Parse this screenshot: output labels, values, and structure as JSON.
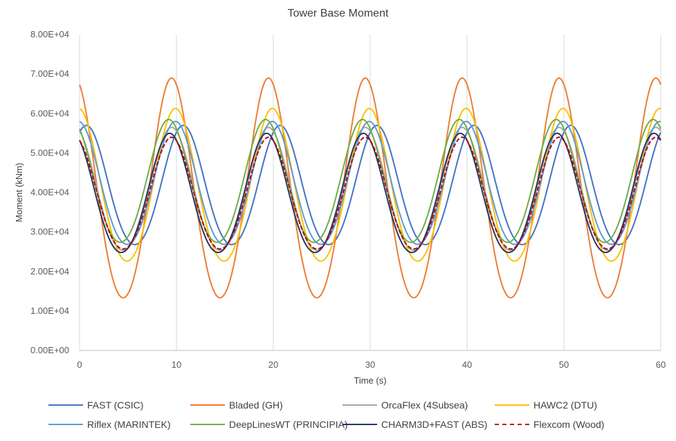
{
  "chart_data": {
    "type": "line",
    "title": "Tower Base Moment",
    "xlabel": "Time (s)",
    "ylabel": "Moment (kNm)",
    "xlim": [
      0,
      60
    ],
    "ylim": [
      0,
      80000
    ],
    "x_ticks": [
      "0",
      "10",
      "20",
      "30",
      "40",
      "50",
      "60"
    ],
    "y_ticks": [
      "0.00E+00",
      "1.00E+04",
      "2.00E+04",
      "3.00E+04",
      "4.00E+04",
      "5.00E+04",
      "6.00E+04",
      "7.00E+04",
      "8.00E+04"
    ],
    "grid": "vertical",
    "legend_position": "bottom",
    "period_s": 10,
    "series": [
      {
        "name": "FAST (CSIC)",
        "color": "#4472C4",
        "dash": "solid",
        "mean": 41000,
        "amplitude": 16000,
        "peak_time": 0.7
      },
      {
        "name": "Bladed (GH)",
        "color": "#ED7D31",
        "dash": "solid",
        "mean": 39500,
        "amplitude": 29500,
        "peak_time": 9.5
      },
      {
        "name": "OrcaFlex (4Subsea)",
        "color": "#A5A5A5",
        "dash": "solid",
        "mean": 40000,
        "amplitude": 16500,
        "peak_time": 9.5
      },
      {
        "name": "HAWC2 (DTU)",
        "color": "#FFC000",
        "dash": "solid",
        "mean": 40800,
        "amplitude": 20500,
        "peak_time": 9.9
      },
      {
        "name": "Riflex (MARINTEK)",
        "color": "#5B9BD5",
        "dash": "solid",
        "mean": 41500,
        "amplitude": 16500,
        "peak_time": 9.9
      },
      {
        "name": "DeepLinesWT (PRINCIPIA)",
        "color": "#70AD47",
        "dash": "solid",
        "mean": 42000,
        "amplitude": 16500,
        "peak_time": 9.2
      },
      {
        "name": "CHARM3D+FAST (ABS)",
        "color": "#1F3864",
        "dash": "solid",
        "mean": 39000,
        "amplitude": 16000,
        "peak_time": 9.3
      },
      {
        "name": "Flexcom (Wood)",
        "color": "#C00000",
        "dash": "dashed",
        "mean": 39000,
        "amplitude": 15000,
        "peak_time": 9.5
      }
    ]
  }
}
